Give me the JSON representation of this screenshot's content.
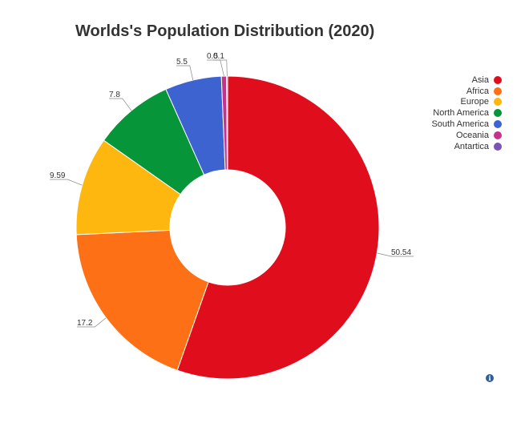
{
  "chart_data": {
    "type": "pie",
    "title": "Worlds's Population Distribution (2020)",
    "categories": [
      "Asia",
      "Africa",
      "Europe",
      "North America",
      "South America",
      "Oceania",
      "Antartica"
    ],
    "values": [
      50.54,
      17.2,
      9.59,
      7.8,
      5.5,
      0.5,
      0.1
    ],
    "value_labels": [
      "50.54",
      "17.2",
      "9.59",
      "7.8",
      "5.5",
      "0.5",
      "0.1"
    ],
    "colors": [
      "#e00d1d",
      "#fd7015",
      "#feb70e",
      "#069639",
      "#3d63d1",
      "#c5318f",
      "#7b53b2"
    ],
    "legend_position": "right",
    "donut": true
  },
  "info_icon": "info-icon"
}
